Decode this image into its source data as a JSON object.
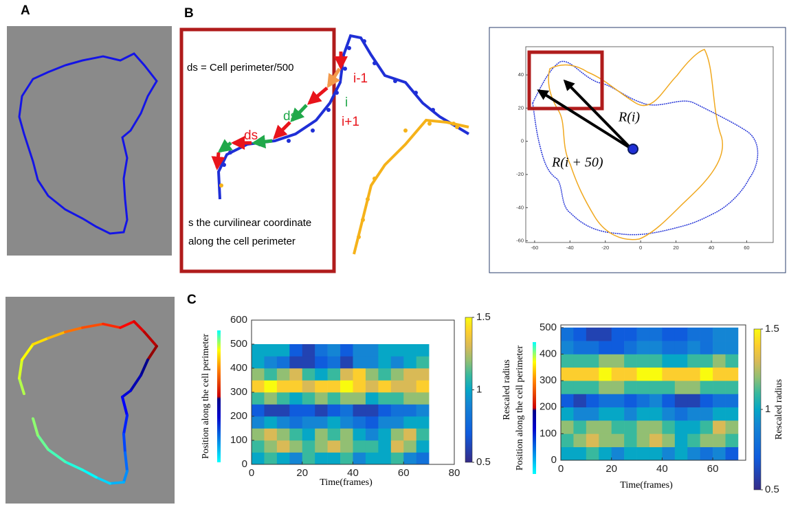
{
  "panels": {
    "a": "A",
    "b": "B",
    "c": "C"
  },
  "schematic": {
    "ds_definition": "ds = Cell perimeter/500",
    "labels": {
      "i_minus_1": "i-1",
      "i": "i",
      "i_plus_1": "i+1",
      "ds_green": "ds",
      "ds_red": "ds"
    },
    "s_note": [
      "s the curvilinear coordinate",
      "along the cell perimeter"
    ]
  },
  "radius_plot": {
    "xlim": [
      -65,
      75
    ],
    "ylim": [
      -61,
      57
    ],
    "xticks": [
      -60,
      -40,
      -20,
      0,
      20,
      40,
      60
    ],
    "yticks": [
      40,
      20,
      0,
      -20,
      -40,
      -60
    ],
    "labels": {
      "r_i": "R(i)",
      "r_i50": "R(i + 50)"
    }
  },
  "chart_data": [
    {
      "type": "heatmap",
      "xlabel": "Time(frames)",
      "ylabel": "Position along the cell perimeter",
      "xlim": [
        0,
        80
      ],
      "ylim": [
        0,
        600
      ],
      "xticks": [
        0,
        20,
        40,
        60,
        80
      ],
      "yticks": [
        0,
        100,
        200,
        300,
        400,
        500,
        600
      ],
      "x_bins": [
        0,
        5,
        10,
        15,
        20,
        25,
        30,
        35,
        40,
        45,
        50,
        55,
        60,
        65,
        70
      ],
      "y_bins": [
        0,
        50,
        100,
        150,
        200,
        250,
        300,
        350,
        400,
        450,
        500
      ],
      "colormap": "parula",
      "colorbar": {
        "label": "Rescaled radius",
        "clim": [
          0.5,
          1.5
        ],
        "ticks": [
          1.5,
          1,
          0.5
        ]
      },
      "z": [
        [
          1.0,
          1.1,
          1.0,
          0.9,
          1.1,
          1.0,
          1.0,
          1.1,
          0.9,
          1.0,
          1.0,
          1.1,
          0.9,
          0.8
        ],
        [
          1.1,
          1.2,
          1.3,
          1.2,
          1.1,
          1.2,
          1.3,
          1.2,
          1.1,
          1.1,
          1.0,
          1.3,
          1.2,
          1.0
        ],
        [
          1.2,
          1.3,
          1.2,
          1.1,
          1.0,
          1.2,
          1.1,
          1.2,
          1.0,
          0.9,
          1.0,
          1.2,
          1.3,
          1.1
        ],
        [
          0.9,
          1.0,
          0.9,
          0.8,
          0.9,
          0.9,
          1.0,
          0.9,
          0.8,
          0.7,
          0.9,
          0.9,
          1.0,
          1.0
        ],
        [
          0.7,
          0.6,
          0.6,
          0.7,
          0.7,
          0.6,
          0.7,
          0.8,
          0.6,
          0.6,
          0.7,
          0.8,
          0.8,
          0.9
        ],
        [
          1.1,
          1.2,
          1.1,
          1.0,
          1.1,
          1.2,
          1.1,
          1.2,
          1.2,
          1.0,
          1.1,
          1.1,
          1.2,
          1.2
        ],
        [
          1.4,
          1.5,
          1.4,
          1.4,
          1.3,
          1.4,
          1.4,
          1.5,
          1.4,
          1.3,
          1.4,
          1.3,
          1.3,
          1.4
        ],
        [
          1.2,
          1.1,
          1.2,
          1.3,
          1.1,
          1.0,
          1.1,
          1.3,
          1.4,
          1.2,
          1.1,
          1.2,
          1.3,
          1.3
        ],
        [
          1.0,
          0.9,
          0.8,
          0.6,
          0.6,
          0.7,
          0.8,
          0.6,
          0.9,
          0.9,
          1.0,
          0.9,
          1.0,
          1.1
        ],
        [
          1.0,
          1.0,
          1.0,
          0.7,
          0.6,
          0.8,
          0.9,
          0.7,
          0.9,
          0.9,
          1.0,
          1.0,
          1.0,
          1.0
        ]
      ]
    },
    {
      "type": "heatmap",
      "xlabel": "Time(frames)",
      "ylabel": "Position along the cell perimeter",
      "xlim": [
        0,
        73
      ],
      "ylim": [
        0,
        510
      ],
      "xticks": [
        0,
        20,
        40,
        60
      ],
      "yticks": [
        0,
        100,
        200,
        300,
        400,
        500
      ],
      "x_bins": [
        0,
        5,
        10,
        15,
        20,
        25,
        30,
        35,
        40,
        45,
        50,
        55,
        60,
        65,
        70
      ],
      "y_bins": [
        0,
        50,
        100,
        150,
        200,
        250,
        300,
        350,
        400,
        450,
        500
      ],
      "colormap": "parula",
      "colorbar": {
        "label": "Rescaled radius",
        "clim": [
          0.5,
          1.5
        ],
        "ticks": [
          1.5,
          1,
          0.5
        ]
      },
      "z": [
        [
          1.0,
          1.0,
          1.1,
          1.0,
          0.9,
          1.0,
          1.0,
          1.0,
          0.9,
          1.0,
          0.9,
          0.8,
          0.9,
          0.7
        ],
        [
          1.1,
          1.2,
          1.3,
          1.2,
          1.2,
          1.1,
          1.2,
          1.3,
          1.2,
          1.0,
          1.1,
          1.2,
          1.2,
          1.1
        ],
        [
          1.2,
          1.1,
          1.2,
          1.2,
          1.1,
          1.1,
          1.2,
          1.2,
          1.1,
          1.0,
          1.0,
          1.1,
          1.3,
          1.2
        ],
        [
          1.0,
          0.9,
          0.9,
          1.0,
          1.0,
          0.9,
          1.0,
          1.0,
          0.9,
          0.8,
          0.9,
          0.9,
          1.0,
          1.0
        ],
        [
          0.7,
          0.6,
          0.7,
          0.8,
          0.8,
          0.7,
          0.8,
          0.9,
          0.7,
          0.6,
          0.6,
          0.7,
          0.8,
          0.8
        ],
        [
          1.1,
          1.1,
          1.1,
          1.2,
          1.2,
          1.1,
          1.1,
          1.1,
          1.1,
          1.2,
          1.2,
          1.1,
          1.1,
          1.1
        ],
        [
          1.4,
          1.4,
          1.4,
          1.5,
          1.4,
          1.4,
          1.5,
          1.5,
          1.4,
          1.4,
          1.4,
          1.5,
          1.4,
          1.4
        ],
        [
          1.1,
          1.1,
          1.1,
          1.2,
          1.2,
          1.1,
          1.1,
          1.1,
          1.0,
          1.0,
          1.1,
          1.1,
          1.2,
          1.1
        ],
        [
          0.9,
          0.8,
          0.8,
          0.7,
          0.7,
          0.8,
          0.9,
          0.9,
          0.8,
          0.8,
          0.9,
          0.8,
          0.9,
          0.9
        ],
        [
          0.8,
          0.7,
          0.6,
          0.6,
          0.7,
          0.7,
          0.8,
          0.8,
          0.7,
          0.7,
          0.8,
          0.8,
          0.9,
          0.9
        ]
      ]
    }
  ]
}
